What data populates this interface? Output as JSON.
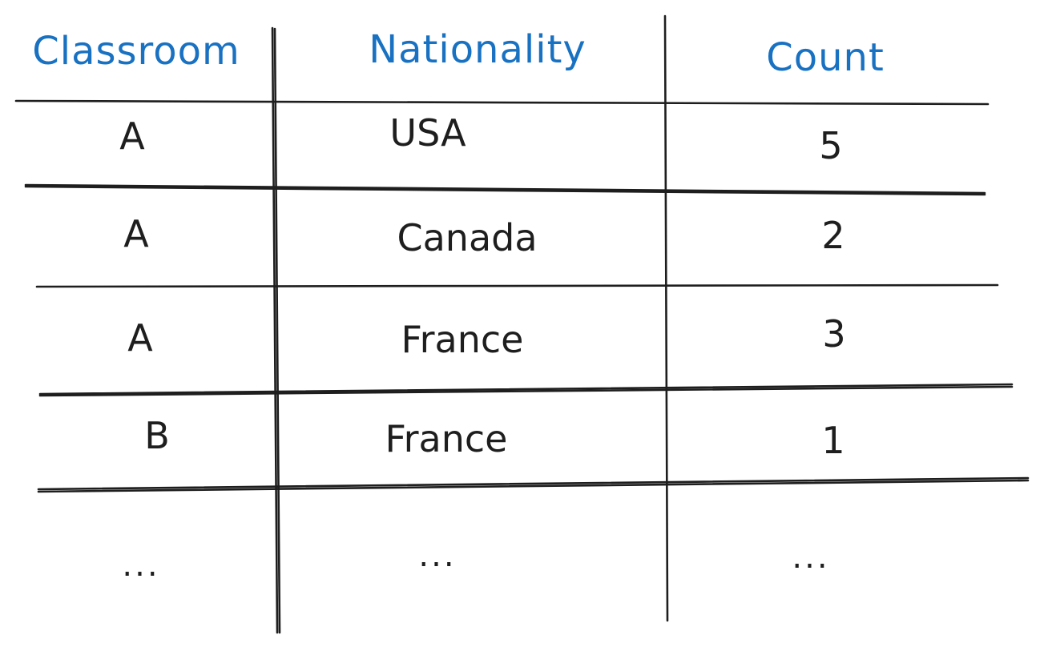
{
  "table": {
    "columns": [
      "Classroom",
      "Nationality",
      "Count"
    ],
    "rows": [
      [
        "A",
        "USA",
        "5"
      ],
      [
        "A",
        "Canada",
        "2"
      ],
      [
        "A",
        "France",
        "3"
      ],
      [
        "B",
        "France",
        "1"
      ],
      [
        "...",
        "...",
        "..."
      ]
    ]
  },
  "colors": {
    "header_text": "#1971c2",
    "body_text": "#1e1e1e",
    "lines": "#1e1e1e"
  }
}
